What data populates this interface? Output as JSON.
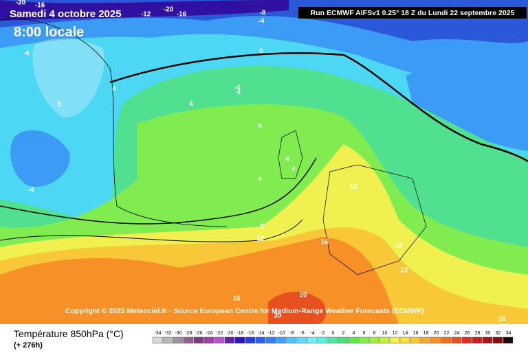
{
  "header": {
    "date": "Samedi 4 octobre 2025",
    "time": "8:00 locale",
    "run": "Run ECMWF AIFSv1 0.25° 18 Z du Lundi 22 septembre 2025"
  },
  "copyright": "Copyright © 2025 Meteociel.fr - Source European Centre for Medium-Range Weather Forecasts (ECMWF)",
  "contour_labels": [
    -20,
    -16,
    -12,
    -20,
    -16,
    -8,
    -4,
    0,
    -4,
    0,
    0,
    -4,
    4,
    4,
    4,
    -4,
    4,
    4,
    4,
    12,
    8,
    12,
    16,
    12,
    12,
    20,
    20,
    16,
    16
  ],
  "legend": {
    "title": "Température 850hPa (°C)",
    "lead": "(+ 276h)",
    "scale": [
      -34,
      -32,
      -30,
      -28,
      -26,
      -24,
      -22,
      -20,
      -18,
      -16,
      -14,
      -12,
      -10,
      -8,
      -6,
      -4,
      -2,
      0,
      2,
      4,
      6,
      8,
      10,
      12,
      14,
      16,
      18,
      20,
      22,
      24,
      26,
      28,
      30,
      32,
      34
    ],
    "colors": [
      "#d8d8d8",
      "#b8b8b8",
      "#a090a0",
      "#906090",
      "#803880",
      "#a040b0",
      "#c050d0",
      "#6020a0",
      "#3010c0",
      "#2040e0",
      "#2860f0",
      "#3080f8",
      "#40a0ff",
      "#50c0ff",
      "#60d8ff",
      "#70f0ff",
      "#60f0e0",
      "#50e8a0",
      "#50e070",
      "#60e850",
      "#80f048",
      "#a0f040",
      "#c8f040",
      "#f0f050",
      "#f8e040",
      "#f8c838",
      "#f8a830",
      "#f89028",
      "#f07020",
      "#e85020",
      "#e03020",
      "#c82020",
      "#a01818",
      "#801010",
      "#200808"
    ]
  }
}
